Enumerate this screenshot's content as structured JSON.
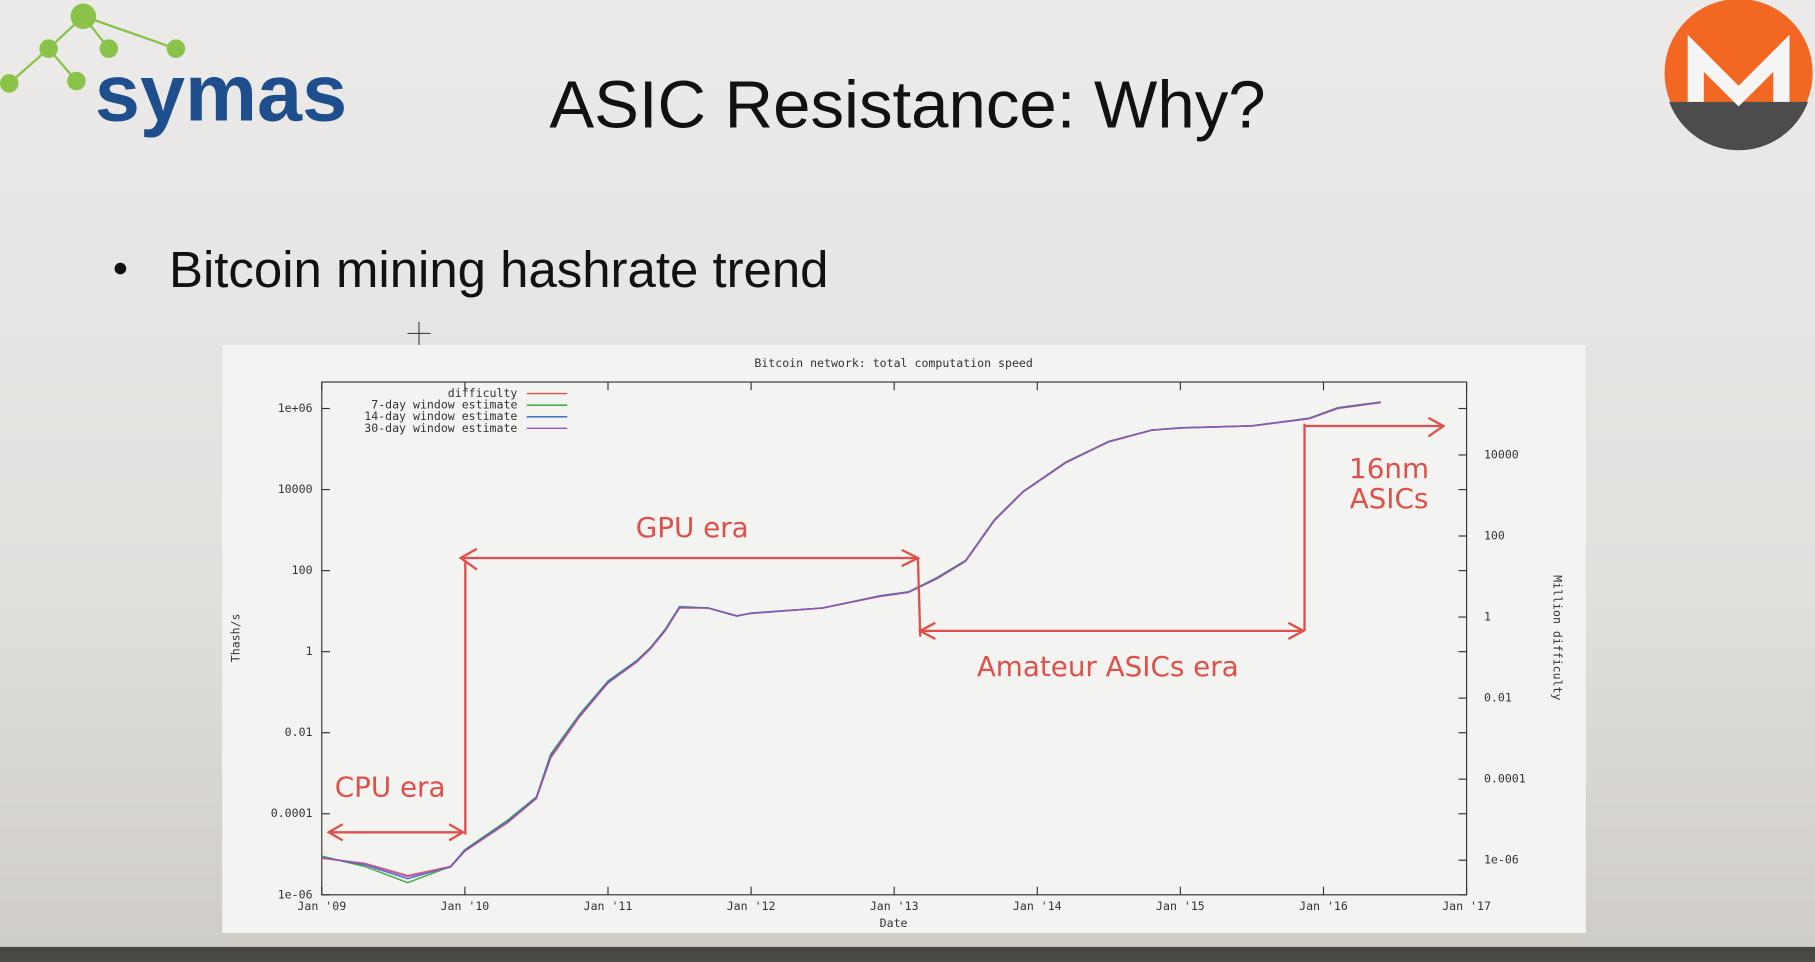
{
  "slide": {
    "logo_text": "symas",
    "title": "ASIC Resistance: Why?",
    "bullet": "Bitcoin mining hashrate trend"
  },
  "chart_data": {
    "type": "line",
    "title": "Bitcoin network: total computation speed",
    "x_label": "Date",
    "y_label": "Thash/s",
    "y2_label": "Million difficulty",
    "log_scale": true,
    "legend": "top-left",
    "x": [
      2009.0,
      2009.3,
      2009.6,
      2009.9,
      2010.0,
      2010.3,
      2010.5,
      2010.6,
      2010.8,
      2011.0,
      2011.2,
      2011.3,
      2011.4,
      2011.5,
      2011.7,
      2011.9,
      2012.0,
      2012.5,
      2012.9,
      2013.1,
      2013.3,
      2013.5,
      2013.7,
      2013.9,
      2014.2,
      2014.5,
      2014.8,
      2015.0,
      2015.5,
      2015.9,
      2016.1,
      2016.4
    ],
    "series": [
      {
        "name": "difficulty",
        "color": "#d9534f",
        "values": [
          8e-06,
          6e-06,
          3e-06,
          5e-06,
          1.2e-05,
          6e-05,
          0.00024,
          0.0024,
          0.024,
          0.17,
          0.55,
          1.2,
          3.3,
          12,
          12,
          7.7,
          8.8,
          12,
          23,
          29,
          63,
          170,
          1700,
          8700,
          46000,
          150000,
          290000,
          330000,
          370000,
          560000,
          1000000,
          1400000
        ]
      },
      {
        "name": "7-day window estimate",
        "color": "#2ca02c",
        "values": [
          9e-06,
          5e-06,
          2e-06,
          5e-06,
          1.3e-05,
          7e-05,
          0.00026,
          0.003,
          0.028,
          0.19,
          0.6,
          1.3,
          3.6,
          13,
          12,
          7.5,
          9,
          12,
          24,
          30,
          68,
          180,
          1800,
          9000,
          48000,
          155000,
          295000,
          335000,
          375000,
          580000,
          1050000,
          1450000
        ]
      },
      {
        "name": "14-day window estimate",
        "color": "#3060c0",
        "values": [
          8.5e-06,
          5.5e-06,
          2.5e-06,
          5e-06,
          1.25e-05,
          6.5e-05,
          0.00025,
          0.0027,
          0.026,
          0.18,
          0.58,
          1.25,
          3.4,
          12.5,
          12,
          7.6,
          8.9,
          12,
          23.5,
          29.5,
          65,
          175,
          1750,
          8800,
          47000,
          152000,
          292000,
          332000,
          372000,
          570000,
          1020000,
          1420000
        ]
      },
      {
        "name": "30-day window estimate",
        "color": "#a050c0",
        "values": [
          8.2e-06,
          5.8e-06,
          2.8e-06,
          4.8e-06,
          1.2e-05,
          6.2e-05,
          0.00024,
          0.0025,
          0.025,
          0.17,
          0.56,
          1.22,
          3.3,
          12.2,
          12,
          7.7,
          8.8,
          12,
          23.2,
          29.2,
          64,
          172,
          1720,
          8750,
          46500,
          151000,
          291000,
          331000,
          371000,
          565000,
          1010000,
          1410000
        ]
      }
    ],
    "xlim": [
      2009,
      2017
    ],
    "xticks": [
      {
        "value": 2009,
        "label": "Jan '09"
      },
      {
        "value": 2010,
        "label": "Jan '10"
      },
      {
        "value": 2011,
        "label": "Jan '11"
      },
      {
        "value": 2012,
        "label": "Jan '12"
      },
      {
        "value": 2013,
        "label": "Jan '13"
      },
      {
        "value": 2014,
        "label": "Jan '14"
      },
      {
        "value": 2015,
        "label": "Jan '15"
      },
      {
        "value": 2016,
        "label": "Jan '16"
      },
      {
        "value": 2017,
        "label": "Jan '17"
      }
    ],
    "ylim": [
      1e-06,
      4500000.0
    ],
    "yticks": [
      {
        "value": 1e-06,
        "label": "1e-06"
      },
      0.0001,
      0.01,
      1,
      100,
      10000,
      {
        "value": 1000000,
        "label": "1e+06"
      }
    ],
    "y2lim": [
      1.4e-07,
      630000.0
    ],
    "y2ticks": [
      {
        "value": 1e-06,
        "label": "1e-06"
      },
      0.0001,
      0.01,
      1,
      100,
      10000
    ],
    "annotations": [
      "CPU era",
      "GPU era",
      "Amateur ASICs era",
      "16nm",
      "ASICs"
    ]
  }
}
